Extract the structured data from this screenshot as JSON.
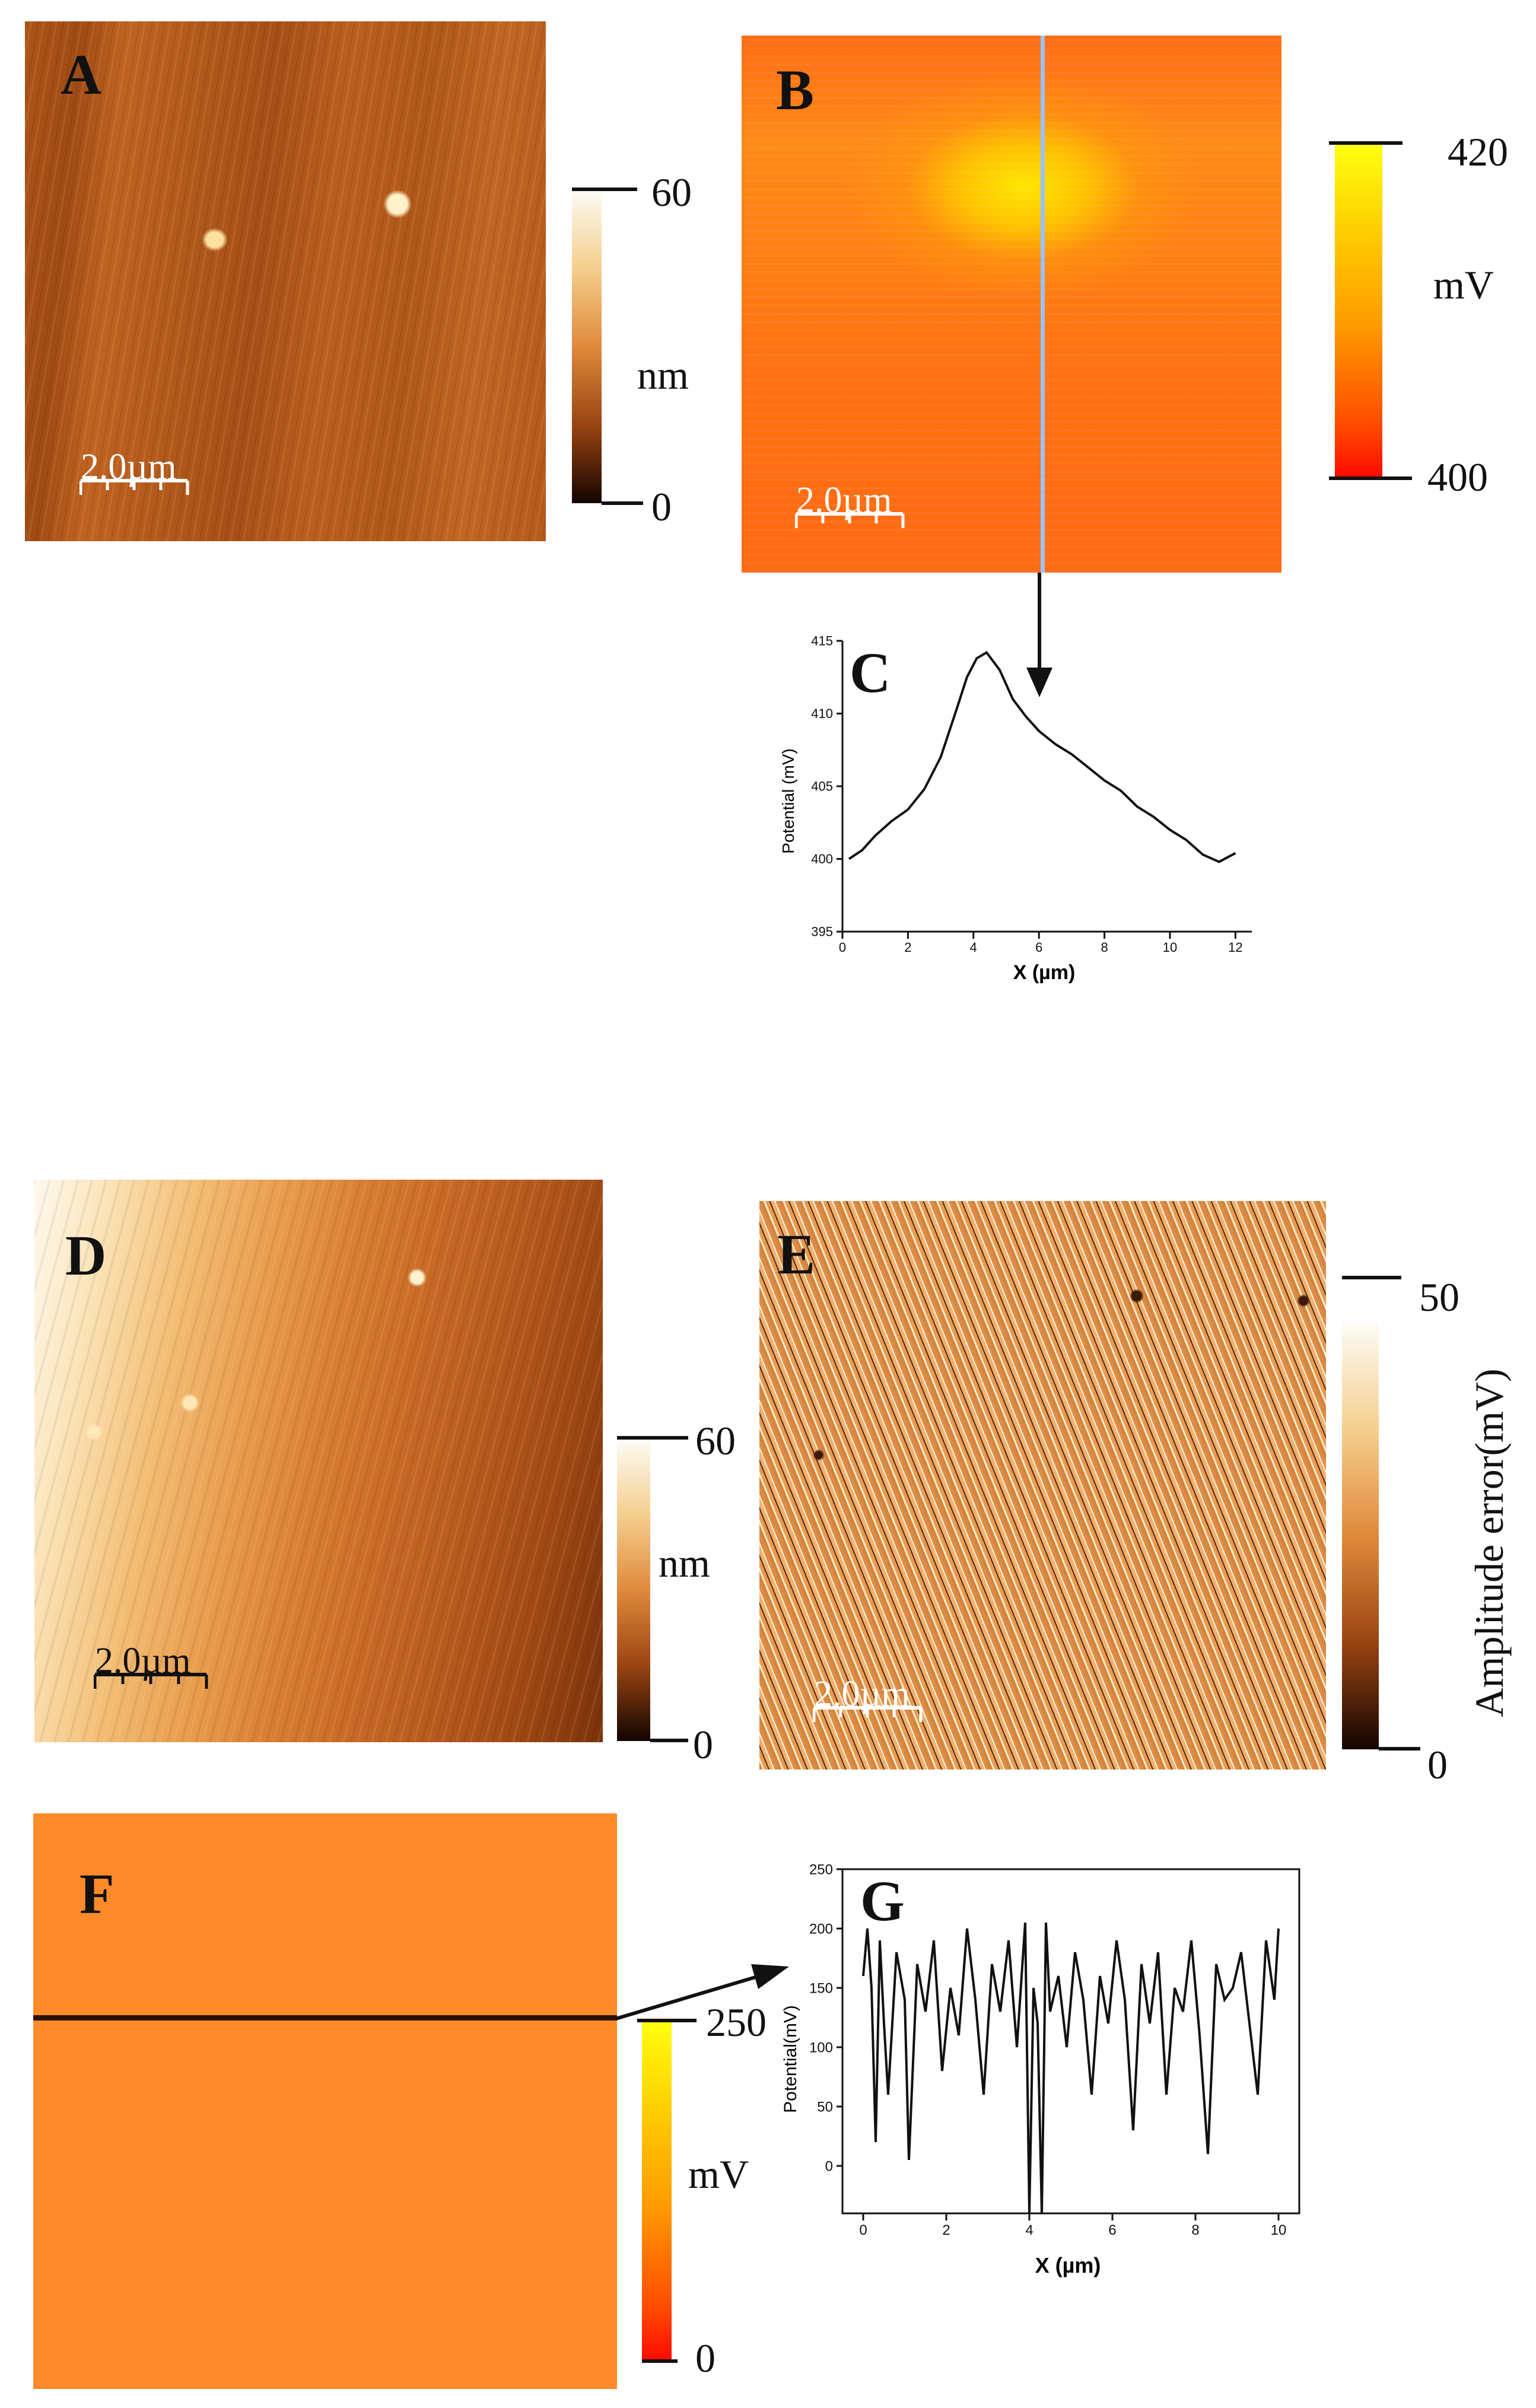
{
  "panels": {
    "A": {
      "label": "A",
      "scalebar": "2.0µm",
      "cbar_max": "60",
      "cbar_unit": "nm",
      "cbar_min": "0"
    },
    "B": {
      "label": "B",
      "scalebar": "2.0µm",
      "cbar_max": "420",
      "cbar_unit": "mV",
      "cbar_min": "400"
    },
    "C": {
      "label": "C"
    },
    "D": {
      "label": "D",
      "scalebar": "2.0µm",
      "cbar_max": "60",
      "cbar_unit": "nm",
      "cbar_min": "0"
    },
    "E": {
      "label": "E",
      "scalebar": "2.0µm",
      "cbar_max": "50",
      "cbar_unit": "Amplitude error(mV)",
      "cbar_min": "0"
    },
    "F": {
      "label": "F",
      "cbar_max": "250",
      "cbar_unit": "mV",
      "cbar_min": "0"
    },
    "G": {
      "label": "G"
    }
  },
  "colors": {
    "afm_brown": "#b85a1c",
    "potential_orange": "#ff7a1a",
    "potential_yellow": "#ffe600",
    "potential_red": "#ff1a00",
    "uniform_orange": "#ff8a2a"
  },
  "chart_data": [
    {
      "panel": "C",
      "type": "line",
      "xlabel": "X (µm)",
      "ylabel": "Potential (mV)",
      "xlim": [
        0,
        12.5
      ],
      "ylim": [
        395,
        415
      ],
      "xticks": [
        0,
        2,
        4,
        6,
        8,
        10,
        12
      ],
      "yticks": [
        395,
        400,
        405,
        410,
        415
      ],
      "x": [
        0.2,
        0.6,
        1.0,
        1.5,
        2.0,
        2.5,
        3.0,
        3.5,
        3.8,
        4.1,
        4.4,
        4.8,
        5.2,
        5.6,
        6.0,
        6.5,
        7.0,
        7.5,
        8.0,
        8.5,
        9.0,
        9.5,
        10.0,
        10.5,
        11.0,
        11.5,
        12.0
      ],
      "y": [
        400.0,
        400.6,
        401.6,
        402.6,
        403.4,
        404.8,
        407.0,
        410.4,
        412.5,
        413.8,
        414.2,
        413.0,
        411.0,
        409.8,
        408.8,
        407.9,
        407.2,
        406.3,
        405.4,
        404.7,
        403.6,
        402.9,
        402.0,
        401.3,
        400.3,
        399.8,
        400.4
      ]
    },
    {
      "panel": "G",
      "type": "line",
      "xlabel": "X (µm)",
      "ylabel": "Potential(mV)",
      "xlim": [
        -0.5,
        10.5
      ],
      "ylim": [
        -40,
        250
      ],
      "xticks": [
        0,
        2,
        4,
        6,
        8,
        10
      ],
      "yticks": [
        0,
        50,
        100,
        150,
        200,
        250
      ],
      "x": [
        0.0,
        0.1,
        0.2,
        0.3,
        0.4,
        0.5,
        0.6,
        0.8,
        1.0,
        1.1,
        1.3,
        1.5,
        1.7,
        1.9,
        2.1,
        2.3,
        2.5,
        2.7,
        2.9,
        3.1,
        3.3,
        3.5,
        3.7,
        3.9,
        4.0,
        4.1,
        4.2,
        4.3,
        4.4,
        4.5,
        4.7,
        4.9,
        5.1,
        5.3,
        5.5,
        5.7,
        5.9,
        6.1,
        6.3,
        6.5,
        6.7,
        6.9,
        7.1,
        7.3,
        7.5,
        7.7,
        7.9,
        8.1,
        8.3,
        8.5,
        8.7,
        8.9,
        9.1,
        9.3,
        9.5,
        9.7,
        9.9,
        10.0
      ],
      "y": [
        160,
        200,
        150,
        20,
        190,
        120,
        60,
        180,
        140,
        5,
        170,
        130,
        190,
        80,
        150,
        110,
        200,
        140,
        60,
        170,
        130,
        190,
        100,
        205,
        -40,
        150,
        120,
        -40,
        205,
        130,
        160,
        100,
        180,
        140,
        60,
        160,
        120,
        190,
        140,
        30,
        170,
        120,
        180,
        60,
        150,
        130,
        190,
        110,
        10,
        170,
        140,
        150,
        180,
        120,
        60,
        190,
        140,
        200
      ]
    }
  ]
}
